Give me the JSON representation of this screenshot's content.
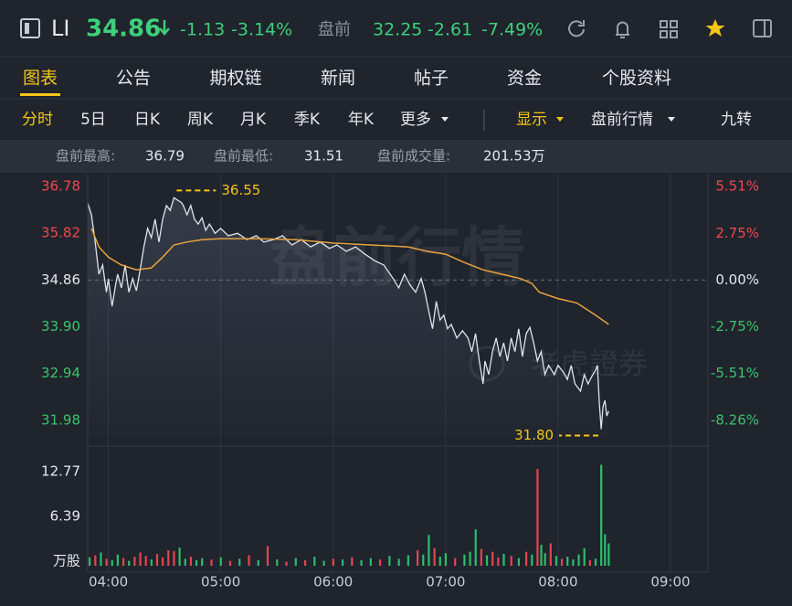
{
  "header": {
    "symbol": "LI",
    "price": "34.86",
    "change": "-1.13",
    "change_pct": "-3.14%",
    "pre_label": "盘前",
    "pre_price": "32.25",
    "pre_change": "-2.61",
    "pre_change_pct": "-7.49%"
  },
  "tabs": {
    "items": [
      "图表",
      "公告",
      "期权链",
      "新闻",
      "帖子",
      "资金",
      "个股资料"
    ],
    "active": 0
  },
  "periods": {
    "items": [
      "分时",
      "5日",
      "日K",
      "周K",
      "月K",
      "季K",
      "年K",
      "更多"
    ],
    "active": 0,
    "display": "显示",
    "mode": "盘前行情",
    "indicator": "九转"
  },
  "stats": [
    {
      "label": "盘前最高:",
      "value": "36.79"
    },
    {
      "label": "盘前最低:",
      "value": "31.51"
    },
    {
      "label": "盘前成交量:",
      "value": "201.53万"
    }
  ],
  "watermarks": [
    "盘前行情",
    "老虎證券"
  ],
  "chart_data": [
    {
      "type": "line",
      "xlim": [
        229,
        560
      ],
      "ylim": [
        31.64,
        36.95
      ],
      "y2lim": [
        -9.24,
        6.0
      ],
      "yticks": [
        36.78,
        35.82,
        34.86,
        {
          "value": 33.9,
          "label": "33.90"
        },
        32.94,
        31.98
      ],
      "y2ticks": [
        {
          "value": 5.51,
          "label": "5.51%"
        },
        {
          "value": 2.75,
          "label": "2.75%"
        },
        {
          "value": 0,
          "label": "0.00%"
        },
        {
          "value": -2.75,
          "label": "-2.75%"
        },
        {
          "value": -5.51,
          "label": "-5.51%"
        },
        {
          "value": -8.26,
          "label": "-8.26%"
        }
      ],
      "up_color": "#f0484f",
      "down_color": "#3ac46b",
      "series": [
        {
          "color": "#dfe3ea",
          "x": [
            229,
            231,
            233,
            235,
            237,
            239,
            240,
            242,
            244,
            245,
            247,
            249,
            251,
            253,
            255,
            257,
            259,
            261,
            263,
            265,
            267,
            269,
            271,
            273,
            275,
            277,
            279,
            280,
            282,
            284,
            286,
            288,
            290,
            292,
            294,
            297,
            300,
            304,
            309,
            314,
            319,
            323,
            328,
            333,
            338,
            343,
            348,
            353,
            358,
            362,
            367,
            372,
            377,
            382,
            387,
            392,
            395,
            398,
            401,
            404,
            407,
            409,
            411,
            413,
            415,
            417,
            419,
            421,
            423,
            426,
            429,
            432,
            434,
            436,
            438,
            440,
            441,
            443,
            445,
            447,
            449,
            451,
            453,
            455,
            457,
            459,
            461,
            463,
            465,
            467,
            469,
            471,
            473,
            475,
            478,
            480,
            483,
            485,
            487,
            489,
            492,
            494,
            496,
            498,
            500,
            501,
            502,
            503,
            504,
            505,
            506,
            507
          ],
          "values": [
            36.44,
            36.2,
            35.64,
            34.98,
            35.17,
            34.61,
            34.89,
            34.32,
            34.79,
            34.98,
            34.7,
            35.17,
            34.61,
            34.89,
            34.64,
            35.07,
            35.54,
            35.92,
            35.73,
            36.11,
            35.64,
            36.11,
            36.39,
            36.29,
            36.55,
            36.5,
            36.45,
            36.39,
            36.2,
            36.39,
            36.11,
            36.01,
            36.14,
            35.88,
            36.01,
            35.82,
            35.92,
            35.77,
            35.82,
            35.69,
            35.77,
            35.64,
            35.69,
            35.77,
            35.58,
            35.69,
            35.54,
            35.64,
            35.51,
            35.58,
            35.45,
            35.54,
            35.39,
            35.26,
            35.17,
            34.89,
            34.7,
            34.98,
            34.76,
            34.61,
            34.89,
            34.61,
            34.23,
            33.86,
            34.42,
            34.04,
            34.14,
            33.86,
            33.95,
            33.67,
            33.82,
            33.67,
            33.39,
            33.76,
            33.2,
            32.73,
            33.2,
            32.92,
            33.39,
            33.67,
            33.29,
            33.57,
            33.2,
            33.67,
            33.39,
            33.86,
            33.29,
            33.76,
            33.89,
            33.57,
            33.2,
            33.39,
            32.92,
            33.11,
            32.92,
            33.11,
            32.96,
            32.82,
            33.11,
            32.73,
            32.58,
            32.92,
            32.73,
            32.88,
            33.01,
            33.11,
            32.36,
            31.8,
            32.26,
            32.39,
            32.07,
            32.17
          ]
        },
        {
          "color": "#e8a33d",
          "x": [
            231,
            235,
            240,
            247,
            255,
            263,
            269,
            275,
            282,
            290,
            300,
            320,
            340,
            360,
            380,
            400,
            410,
            420,
            430,
            440,
            450,
            460,
            466,
            470,
            480,
            490,
            500,
            507
          ],
          "values": [
            35.92,
            35.54,
            35.33,
            35.17,
            35.07,
            35.11,
            35.33,
            35.58,
            35.64,
            35.69,
            35.71,
            35.71,
            35.69,
            35.62,
            35.58,
            35.54,
            35.45,
            35.39,
            35.22,
            35.07,
            34.98,
            34.89,
            34.79,
            34.61,
            34.48,
            34.39,
            34.14,
            33.95
          ]
        }
      ],
      "annotations": [
        {
          "text": "36.55",
          "x": 275,
          "y": 36.55
        },
        {
          "text": "31.80",
          "x": 503,
          "y": 31.8
        }
      ]
    },
    {
      "type": "bar",
      "xlim": [
        229,
        560
      ],
      "ylim": [
        0,
        14.86
      ],
      "yticks": [
        {
          "value": 0,
          "label": "万股"
        },
        6.39,
        12.77
      ],
      "xticks": [
        {
          "value": 240,
          "label": "04:00"
        },
        {
          "value": 300,
          "label": "05:00"
        },
        {
          "value": 360,
          "label": "06:00"
        },
        {
          "value": 420,
          "label": "07:00"
        },
        {
          "value": 480,
          "label": "08:00"
        },
        {
          "value": 540,
          "label": "09:00"
        }
      ],
      "x": [
        230,
        233,
        236,
        239,
        242,
        245,
        248,
        251,
        254,
        257,
        260,
        263,
        266,
        269,
        272,
        275,
        278,
        281,
        284,
        287,
        290,
        295,
        300,
        305,
        310,
        315,
        320,
        325,
        330,
        335,
        340,
        345,
        350,
        355,
        360,
        365,
        370,
        375,
        380,
        385,
        390,
        395,
        400,
        405,
        408,
        411,
        414,
        417,
        420,
        425,
        430,
        433,
        436,
        439,
        442,
        445,
        448,
        451,
        455,
        459,
        463,
        466,
        469,
        471,
        473,
        476,
        479,
        482,
        485,
        488,
        491,
        494,
        497,
        500,
        503,
        505,
        507
      ],
      "values": [
        1.2,
        1.5,
        1.9,
        1.0,
        0.8,
        1.6,
        1.1,
        0.7,
        1.3,
        1.9,
        1.4,
        0.9,
        1.7,
        1.2,
        2.2,
        2.1,
        2.6,
        1.0,
        1.3,
        0.8,
        1.1,
        0.9,
        1.2,
        0.7,
        1.0,
        1.5,
        0.8,
        2.8,
        0.9,
        0.6,
        1.1,
        0.8,
        1.3,
        0.7,
        1.0,
        0.9,
        1.2,
        0.8,
        1.1,
        0.9,
        1.4,
        1.0,
        1.5,
        2.2,
        1.6,
        4.4,
        2.5,
        1.3,
        1.8,
        1.1,
        1.6,
        2.0,
        5.2,
        2.4,
        1.5,
        2.0,
        1.2,
        1.7,
        1.4,
        1.1,
        2.0,
        1.6,
        13.8,
        3.0,
        1.8,
        3.2,
        1.4,
        1.0,
        1.3,
        0.9,
        1.6,
        2.5,
        0.8,
        1.0,
        14.4,
        4.5,
        3.2
      ],
      "colors": [
        "#2ebd6b",
        "#e8434f",
        "#2ebd6b",
        "#e8434f",
        "#2ebd6b",
        "#2ebd6b",
        "#e8434f",
        "#2ebd6b",
        "#e8434f",
        "#e8434f",
        "#e8434f",
        "#2ebd6b",
        "#e8434f",
        "#e8434f",
        "#e8434f",
        "#e8434f",
        "#2ebd6b",
        "#2ebd6b",
        "#e8434f",
        "#2ebd6b",
        "#2ebd6b",
        "#e8434f",
        "#2ebd6b",
        "#e8434f",
        "#2ebd6b",
        "#e8434f",
        "#2ebd6b",
        "#e8434f",
        "#2ebd6b",
        "#e8434f",
        "#2ebd6b",
        "#e8434f",
        "#2ebd6b",
        "#2ebd6b",
        "#e8434f",
        "#2ebd6b",
        "#e8434f",
        "#2ebd6b",
        "#2ebd6b",
        "#e8434f",
        "#2ebd6b",
        "#2ebd6b",
        "#2ebd6b",
        "#e8434f",
        "#2ebd6b",
        "#2ebd6b",
        "#e8434f",
        "#2ebd6b",
        "#2ebd6b",
        "#e8434f",
        "#2ebd6b",
        "#2ebd6b",
        "#2ebd6b",
        "#e8434f",
        "#2ebd6b",
        "#e8434f",
        "#e8434f",
        "#2ebd6b",
        "#e8434f",
        "#2ebd6b",
        "#e8434f",
        "#2ebd6b",
        "#e8434f",
        "#2ebd6b",
        "#2ebd6b",
        "#e8434f",
        "#2ebd6b",
        "#e8434f",
        "#2ebd6b",
        "#2ebd6b",
        "#2ebd6b",
        "#2ebd6b",
        "#e8434f",
        "#2ebd6b",
        "#2ebd6b",
        "#2ebd6b",
        "#2ebd6b"
      ]
    }
  ]
}
